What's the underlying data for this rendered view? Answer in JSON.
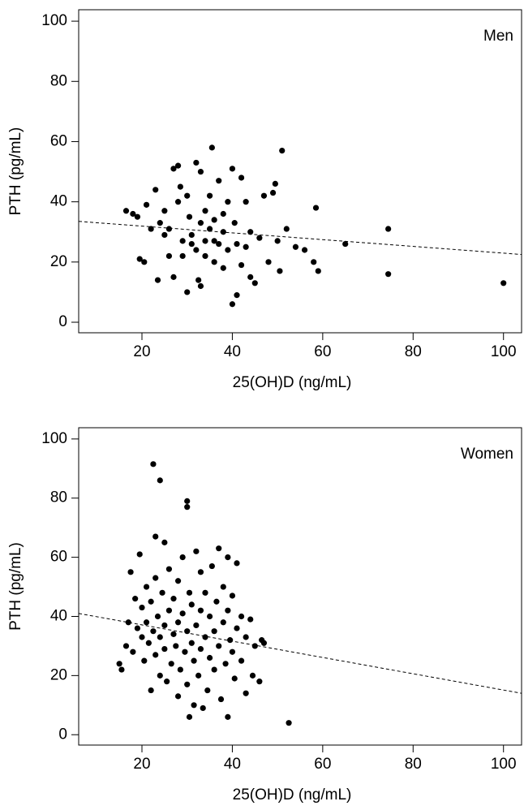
{
  "chart_data": [
    {
      "type": "scatter",
      "label": "Men",
      "x_label": "25(OH)D (ng/mL)",
      "y_label": "PTH (pg/mL)",
      "color": "#000000",
      "xlim": [
        6,
        104
      ],
      "ylim": [
        -3.5,
        103.8
      ],
      "xticks": [
        20,
        40,
        60,
        80,
        100
      ],
      "yticks": [
        0,
        20,
        40,
        60,
        80,
        100
      ],
      "x": [
        16.5,
        18,
        19,
        19.5,
        20.5,
        21,
        22,
        23,
        23.5,
        24,
        25,
        25,
        26,
        26,
        27,
        27,
        28,
        28,
        28.5,
        29,
        29,
        30,
        30,
        30.5,
        31,
        31,
        32,
        32,
        32.5,
        33,
        33,
        33,
        34,
        34,
        34,
        35,
        35,
        35.5,
        36,
        36,
        36,
        37,
        37,
        38,
        38,
        38,
        39,
        39,
        40,
        40,
        40.5,
        41,
        41,
        42,
        42,
        43,
        43,
        44,
        44,
        45,
        46,
        47,
        48,
        49,
        49.5,
        50,
        50.5,
        51,
        52,
        54,
        56,
        58,
        58.5,
        59,
        65,
        74.5,
        74.5,
        100
      ],
      "y": [
        37,
        36,
        35,
        21,
        20,
        39,
        31,
        44,
        14,
        33,
        37,
        29,
        22,
        31,
        15,
        51,
        52,
        40,
        45,
        27,
        22,
        10,
        42,
        35,
        26,
        29,
        53,
        24,
        14,
        50,
        33,
        12,
        27,
        37,
        22,
        42,
        31,
        58,
        34,
        20,
        27,
        47,
        26,
        36,
        30,
        18,
        40,
        24,
        51,
        6,
        33,
        9,
        26,
        48,
        19,
        40,
        25,
        15,
        30,
        13,
        28,
        42,
        20,
        43,
        46,
        27,
        17,
        57,
        31,
        25,
        24,
        20,
        38,
        17,
        26,
        31,
        16,
        13
      ],
      "trend": {
        "x": [
          6,
          104
        ],
        "y": [
          33.5,
          22.5
        ]
      }
    },
    {
      "type": "scatter",
      "label": "Women",
      "x_label": "25(OH)D (ng/mL)",
      "y_label": "PTH (pg/mL)",
      "color": "#000000",
      "xlim": [
        6,
        104
      ],
      "ylim": [
        -3.5,
        103.8
      ],
      "xticks": [
        20,
        40,
        60,
        80,
        100
      ],
      "yticks": [
        0,
        20,
        40,
        60,
        80,
        100
      ],
      "x": [
        15,
        15.5,
        16.5,
        17,
        17.5,
        18,
        18.5,
        19,
        19.5,
        20,
        20,
        20.5,
        21,
        21,
        21.5,
        22,
        22,
        22.5,
        22.5,
        23,
        23,
        23,
        23.5,
        24,
        24,
        24,
        24.5,
        25,
        25,
        25,
        25.5,
        26,
        26,
        26.5,
        27,
        27,
        27.5,
        28,
        28,
        28,
        28.5,
        29,
        29,
        29.5,
        30,
        30,
        30,
        30,
        30.5,
        30.5,
        31,
        31,
        31.5,
        31.5,
        32,
        32,
        32.5,
        33,
        33,
        33,
        33.5,
        34,
        34,
        34.5,
        35,
        35,
        35.5,
        36,
        36,
        36.5,
        37,
        37,
        37.5,
        38,
        38,
        38.5,
        39,
        39,
        39,
        39.5,
        40,
        40,
        40.5,
        41,
        41,
        42,
        42,
        43,
        43,
        44,
        44.5,
        45,
        46,
        46.5,
        47,
        52.5
      ],
      "y": [
        24,
        22,
        30,
        38,
        55,
        28,
        46,
        36,
        61,
        33,
        43,
        25,
        50,
        38,
        31,
        15,
        45,
        91.5,
        35,
        67,
        27,
        53,
        40,
        86,
        20,
        33,
        48,
        65,
        29,
        37,
        18,
        42,
        56,
        24,
        34,
        46,
        30,
        13,
        52,
        38,
        22,
        41,
        60,
        28,
        79,
        77,
        35,
        17,
        6,
        48,
        31,
        44,
        10,
        25,
        62,
        37,
        20,
        55,
        29,
        42,
        9,
        33,
        48,
        15,
        40,
        26,
        57,
        35,
        22,
        45,
        63,
        30,
        12,
        50,
        38,
        24,
        6,
        42,
        60,
        32,
        28,
        47,
        19,
        58,
        36,
        25,
        40,
        14,
        33,
        39,
        20,
        30,
        18,
        32,
        31,
        4
      ],
      "trend": {
        "x": [
          6,
          104
        ],
        "y": [
          41,
          14
        ]
      }
    }
  ]
}
